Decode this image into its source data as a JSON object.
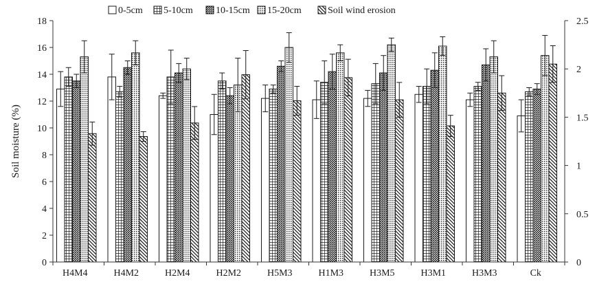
{
  "chart_data": {
    "type": "bar",
    "title": "",
    "xlabel": "",
    "ylabel": "Soil moisture (%)",
    "y2label": "",
    "ylim": [
      0,
      18
    ],
    "y2lim": [
      0,
      2.5
    ],
    "yticks": [
      "0",
      "2",
      "4",
      "6",
      "8",
      "10",
      "12",
      "14",
      "16",
      "18"
    ],
    "y2ticks": [
      "0",
      "0.5",
      "1",
      "1.5",
      "2",
      "2.5"
    ],
    "grid": false,
    "legend_position": "top",
    "categories": [
      "H4M4",
      "H4M2",
      "H2M4",
      "H2M2",
      "H5M3",
      "H1M3",
      "H3M5",
      "H3M1",
      "H3M3",
      "Ck"
    ],
    "series": [
      {
        "name": "0-5cm",
        "axis": "left",
        "pattern": "blank",
        "values": [
          12.9,
          13.8,
          12.4,
          11.0,
          12.2,
          12.1,
          12.2,
          12.5,
          12.1,
          10.9
        ],
        "errors": [
          1.3,
          1.7,
          0.2,
          1.5,
          1.0,
          1.4,
          0.6,
          0.6,
          0.5,
          1.2
        ]
      },
      {
        "name": "5-10cm",
        "axis": "left",
        "pattern": "grid",
        "values": [
          13.8,
          12.7,
          13.8,
          13.5,
          12.9,
          13.4,
          13.3,
          13.1,
          13.1,
          12.7
        ],
        "errors": [
          0.7,
          0.4,
          2.0,
          0.6,
          0.3,
          1.6,
          1.5,
          1.3,
          0.3,
          0.3
        ]
      },
      {
        "name": "10-15cm",
        "axis": "left",
        "pattern": "dense",
        "values": [
          13.5,
          14.5,
          14.1,
          12.4,
          14.6,
          14.2,
          14.1,
          14.3,
          14.7,
          12.9
        ],
        "errors": [
          0.5,
          0.5,
          0.7,
          0.6,
          0.4,
          1.3,
          1.3,
          1.3,
          1.2,
          0.4
        ]
      },
      {
        "name": "15-20cm",
        "axis": "left",
        "pattern": "dotted",
        "values": [
          15.3,
          15.6,
          14.4,
          13.2,
          16.0,
          15.6,
          16.2,
          16.1,
          15.3,
          15.4
        ],
        "errors": [
          1.2,
          0.9,
          0.8,
          2.0,
          1.1,
          0.6,
          0.5,
          0.7,
          1.2,
          1.5
        ]
      },
      {
        "name": "Soil wind erosion",
        "axis": "right",
        "pattern": "diagonal",
        "values": [
          1.33,
          1.3,
          1.44,
          1.94,
          1.67,
          1.91,
          1.68,
          1.41,
          1.75,
          2.05
        ],
        "errors": [
          0.12,
          0.05,
          0.17,
          0.25,
          0.15,
          0.19,
          0.18,
          0.11,
          0.18,
          0.19
        ]
      }
    ]
  }
}
